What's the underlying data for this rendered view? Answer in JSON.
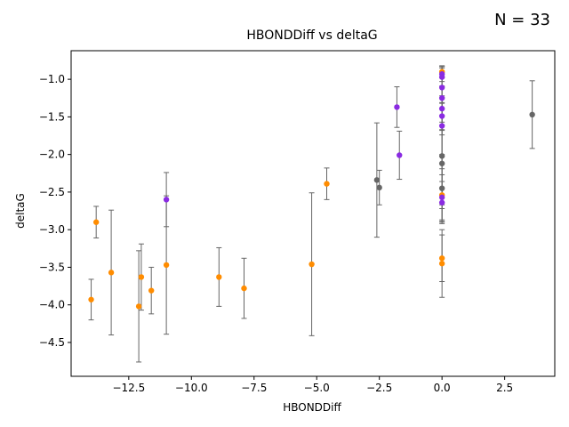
{
  "annotation": "N = 33",
  "chart_data": {
    "type": "scatter",
    "title": "HBONDDiff vs deltaG",
    "xlabel": "HBONDDiff",
    "ylabel": "deltaG",
    "xlim": [
      -14.8,
      4.5
    ],
    "ylim": [
      -4.95,
      -0.62
    ],
    "xticks": [
      -12.5,
      -10.0,
      -7.5,
      -5.0,
      -2.5,
      0.0,
      2.5
    ],
    "xtick_labels": [
      "−12.5",
      "−10.0",
      "−7.5",
      "−5.0",
      "−2.5",
      "0.0",
      "2.5"
    ],
    "yticks": [
      -4.5,
      -4.0,
      -3.5,
      -3.0,
      -2.5,
      -2.0,
      -1.5,
      -1.0
    ],
    "ytick_labels": [
      "−4.5",
      "−4.0",
      "−3.5",
      "−3.0",
      "−2.5",
      "−2.0",
      "−1.5",
      "−1.0"
    ],
    "grid": false,
    "colors": {
      "orange": "#ff8c00",
      "purple": "#8a2be2",
      "gray": "#666666",
      "errorbar": "#666666"
    },
    "points": [
      {
        "x": -14.0,
        "y": -3.93,
        "err": 0.27,
        "color": "orange"
      },
      {
        "x": -13.8,
        "y": -2.9,
        "err": 0.21,
        "color": "orange"
      },
      {
        "x": -13.2,
        "y": -3.57,
        "err": 0.83,
        "color": "orange"
      },
      {
        "x": -12.1,
        "y": -4.02,
        "err": 0.74,
        "color": "orange"
      },
      {
        "x": -12.0,
        "y": -3.63,
        "err": 0.44,
        "color": "orange"
      },
      {
        "x": -11.6,
        "y": -3.81,
        "err": 0.31,
        "color": "orange"
      },
      {
        "x": -11.0,
        "y": -3.47,
        "err": 0.92,
        "color": "orange"
      },
      {
        "x": -11.0,
        "y": -2.6,
        "err": 0.36,
        "color": "purple"
      },
      {
        "x": -8.9,
        "y": -3.63,
        "err": 0.39,
        "color": "orange"
      },
      {
        "x": -7.9,
        "y": -3.78,
        "err": 0.4,
        "color": "orange"
      },
      {
        "x": -5.2,
        "y": -3.46,
        "err": 0.95,
        "color": "orange"
      },
      {
        "x": -4.6,
        "y": -2.39,
        "err": 0.21,
        "color": "orange"
      },
      {
        "x": -2.6,
        "y": -2.34,
        "err": 0.76,
        "color": "gray"
      },
      {
        "x": -2.5,
        "y": -2.44,
        "err": 0.23,
        "color": "gray"
      },
      {
        "x": -1.8,
        "y": -1.37,
        "err": 0.27,
        "color": "purple"
      },
      {
        "x": -1.7,
        "y": -2.01,
        "err": 0.32,
        "color": "purple"
      },
      {
        "x": 0.0,
        "y": -0.9,
        "err": 0.08,
        "color": "orange"
      },
      {
        "x": 0.0,
        "y": -0.93,
        "err": 0.1,
        "color": "purple"
      },
      {
        "x": 0.0,
        "y": -0.97,
        "err": 0.12,
        "color": "purple"
      },
      {
        "x": 0.0,
        "y": -1.11,
        "err": 0.2,
        "color": "purple"
      },
      {
        "x": 0.0,
        "y": -1.39,
        "err": 0.29,
        "color": "purple"
      },
      {
        "x": 0.0,
        "y": -1.49,
        "err": 0.25,
        "color": "purple"
      },
      {
        "x": 0.0,
        "y": -1.62,
        "err": 0.4,
        "color": "purple"
      },
      {
        "x": 0.0,
        "y": -2.12,
        "err": 0.55,
        "color": "gray"
      },
      {
        "x": 0.0,
        "y": -2.45,
        "err": 0.45,
        "color": "gray"
      },
      {
        "x": 0.0,
        "y": -2.54,
        "err": 0.35,
        "color": "orange"
      },
      {
        "x": 0.0,
        "y": -2.57,
        "err": 0.3,
        "color": "purple"
      },
      {
        "x": 0.0,
        "y": -2.64,
        "err": 0.28,
        "color": "purple"
      },
      {
        "x": 0.0,
        "y": -3.38,
        "err": 0.31,
        "color": "orange"
      },
      {
        "x": 0.0,
        "y": -3.45,
        "err": 0.45,
        "color": "orange"
      },
      {
        "x": 0.0,
        "y": -2.02,
        "err": 0.7,
        "color": "gray"
      },
      {
        "x": 0.0,
        "y": -1.25,
        "err": 0.42,
        "color": "purple"
      },
      {
        "x": 3.6,
        "y": -1.47,
        "err": 0.45,
        "color": "gray"
      }
    ]
  }
}
